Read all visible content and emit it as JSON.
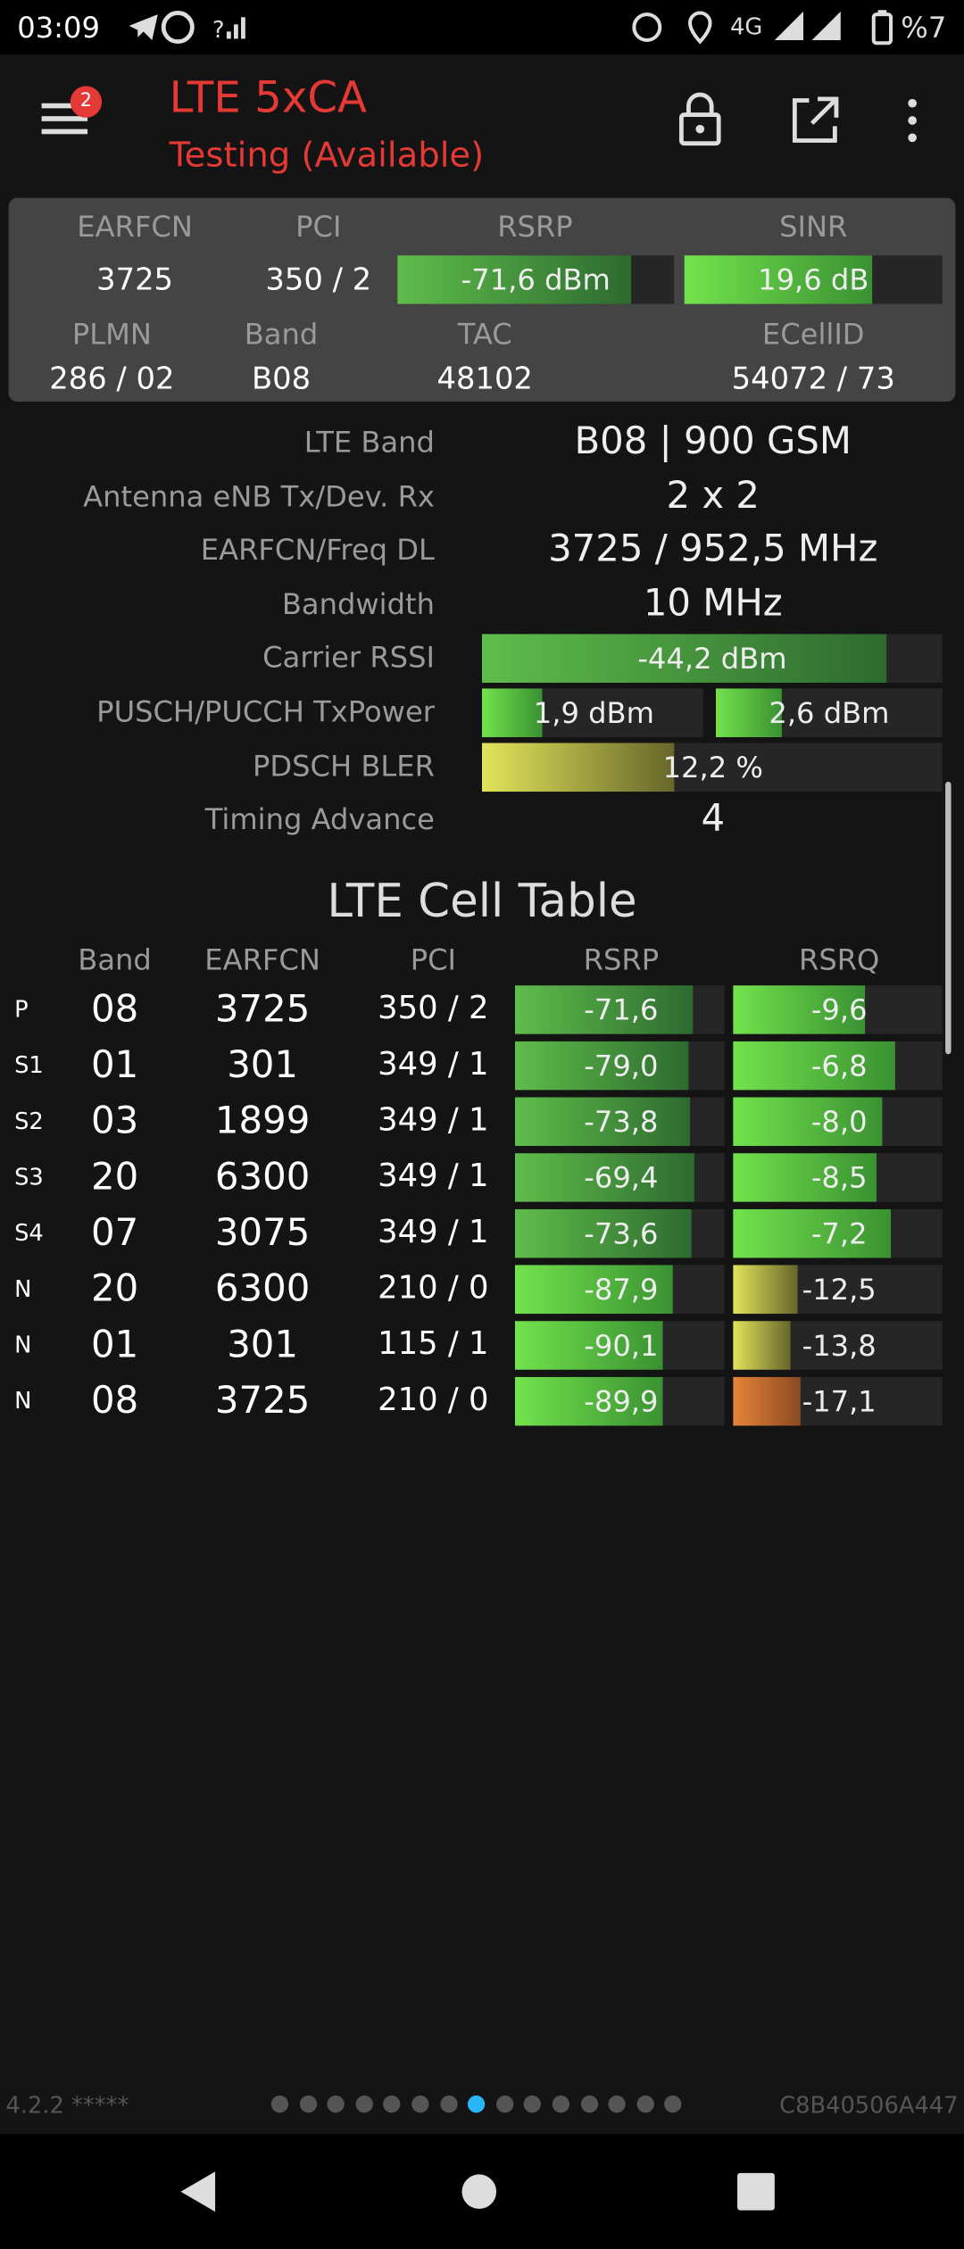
{
  "status_bar": {
    "time": "03:09",
    "network": "4G",
    "battery": "%7"
  },
  "header": {
    "title": "LTE 5xCA",
    "subtitle": "Testing (Available)",
    "badge": "2"
  },
  "summary": {
    "row1_labels": [
      "EARFCN",
      "PCI",
      "RSRP",
      "SINR"
    ],
    "row1_values": [
      "3725",
      "350 / 2",
      "-71,6 dBm",
      "19,6 dB"
    ],
    "row2_labels": [
      "PLMN",
      "Band",
      "TAC",
      "ECellID"
    ],
    "row2_values": [
      "286 / 02",
      "B08",
      "48102",
      "54072 / 73"
    ]
  },
  "details": [
    {
      "label": "LTE Band",
      "values": [
        "B08 | 900 GSM"
      ]
    },
    {
      "label": "Antenna eNB Tx/Dev. Rx",
      "values": [
        "2 x 2"
      ]
    },
    {
      "label": "EARFCN/Freq DL",
      "values": [
        "3725 / 952,5 MHz"
      ]
    },
    {
      "label": "Bandwidth",
      "values": [
        "10 MHz"
      ]
    },
    {
      "label": "Carrier RSSI",
      "values": [
        "-44,2 dBm"
      ]
    },
    {
      "label": "PUSCH/PUCCH TxPower",
      "values": [
        "1,9 dBm",
        "2,6 dBm"
      ]
    },
    {
      "label": "PDSCH BLER",
      "values": [
        "12,2 %"
      ]
    },
    {
      "label": "Timing Advance",
      "values": [
        "4"
      ]
    }
  ],
  "cell_table": {
    "title": "LTE Cell Table",
    "headers": [
      "Band",
      "EARFCN",
      "PCI",
      "RSRP",
      "RSRQ"
    ],
    "rows": [
      [
        "P",
        "08",
        "3725",
        "350 / 2",
        "-71,6",
        "-9,6"
      ],
      [
        "S1",
        "01",
        "301",
        "349 / 1",
        "-79,0",
        "-6,8"
      ],
      [
        "S2",
        "03",
        "1899",
        "349 / 1",
        "-73,8",
        "-8,0"
      ],
      [
        "S3",
        "20",
        "6300",
        "349 / 1",
        "-69,4",
        "-8,5"
      ],
      [
        "S4",
        "07",
        "3075",
        "349 / 1",
        "-73,6",
        "-7,2"
      ],
      [
        "N",
        "20",
        "6300",
        "210 / 0",
        "-87,9",
        "-12,5"
      ],
      [
        "N",
        "01",
        "301",
        "115 / 1",
        "-90,1",
        "-13,8"
      ],
      [
        "N",
        "08",
        "3725",
        "210 / 0",
        "-89,9",
        "-17,1"
      ]
    ]
  },
  "footer": {
    "version": "4.2.2 *****",
    "device_id": "C8B40506A447"
  }
}
